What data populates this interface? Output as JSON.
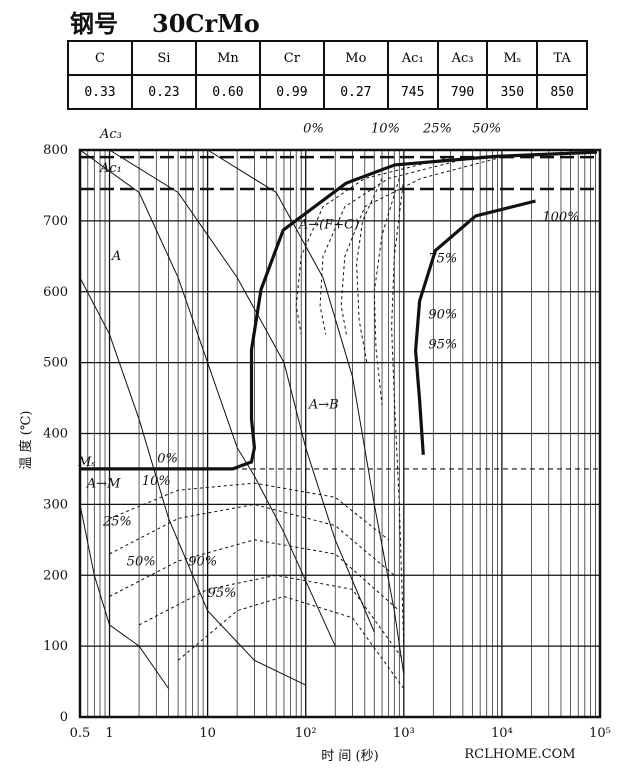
{
  "header": {
    "steel_label": "钢号",
    "grade": "30CrMo"
  },
  "table": {
    "headers": [
      "C",
      "Si",
      "Mn",
      "Cr",
      "Mo",
      "Ac₁",
      "Ac₃",
      "Mₛ",
      "TA"
    ],
    "rows": [
      [
        "0.33",
        "0.23",
        "0.60",
        "0.99",
        "0.27",
        "745",
        "790",
        "350",
        "850"
      ]
    ]
  },
  "chart_data": {
    "type": "line",
    "x_label": "时 间 (秒)",
    "y_label": "温 度 (℃)",
    "x_log": true,
    "grid": true,
    "xlim": [
      0.5,
      100000
    ],
    "ylim": [
      0,
      800
    ],
    "xticks": [
      0.5,
      1,
      10,
      {
        "value": 100,
        "label": "10²"
      },
      {
        "value": 1000,
        "label": "10³"
      },
      {
        "value": 10000,
        "label": "10⁴"
      },
      {
        "value": 100000,
        "label": "10⁵"
      }
    ],
    "yticks": [
      0,
      100,
      200,
      300,
      400,
      500,
      600,
      700,
      800
    ],
    "reference_lines": [
      {
        "label": "Ac₃",
        "value": 790
      },
      {
        "label": "Ac₁",
        "value": 745
      },
      {
        "label": "Mₛ",
        "value": 350
      }
    ],
    "annotations": [
      "A→(F+C)",
      "A→B",
      "A→M",
      "A",
      "0%"
    ],
    "series": [
      {
        "name": "0%",
        "line_style": "thick",
        "x": [
          0.5,
          18,
          28,
          30,
          28,
          28,
          35,
          59,
          257,
          810,
          8700,
          93000
        ],
        "y": [
          350,
          350,
          360,
          380,
          420,
          518,
          603,
          687,
          753,
          779,
          791,
          797
        ]
      },
      {
        "name": "10%",
        "line_style": "dashed",
        "x": [
          3000,
          400,
          150,
          90,
          80,
          90
        ],
        "y": [
          790,
          760,
          720,
          650,
          580,
          540
        ]
      },
      {
        "name": "25%",
        "line_style": "dashed",
        "x": [
          5000,
          700,
          250,
          150,
          140,
          160
        ],
        "y": [
          790,
          760,
          720,
          650,
          580,
          540
        ]
      },
      {
        "name": "50%",
        "line_style": "dashed",
        "x": [
          10000,
          1500,
          400,
          250,
          230,
          260
        ],
        "y": [
          790,
          760,
          720,
          650,
          580,
          540
        ]
      },
      {
        "name": "100%",
        "line_style": "thick",
        "x": [
          1580,
          1450,
          1320,
          1450,
          2100,
          5400,
          22000
        ],
        "y": [
          370,
          447,
          517,
          587,
          658,
          707,
          728
        ]
      },
      {
        "name": "75%",
        "line_style": "dashed",
        "x": [
          600,
          380,
          330,
          350,
          420
        ],
        "y": [
          760,
          700,
          640,
          560,
          500
        ]
      },
      {
        "name": "90%",
        "line_style": "dashed",
        "x": [
          900,
          600,
          500,
          520,
          600
        ],
        "y": [
          760,
          680,
          600,
          520,
          440
        ]
      },
      {
        "name": "95%",
        "line_style": "dashed",
        "x": [
          1000,
          800,
          750,
          800,
          900,
          1000
        ],
        "y": [
          760,
          650,
          550,
          450,
          300,
          100
        ]
      },
      {
        "name": "10%",
        "line_style": "dashed",
        "x": [
          1,
          5,
          30,
          200,
          700
        ],
        "y": [
          280,
          320,
          330,
          310,
          250
        ]
      },
      {
        "name": "25%",
        "line_style": "dashed",
        "x": [
          1,
          5,
          30,
          200,
          800
        ],
        "y": [
          230,
          280,
          300,
          270,
          200
        ]
      },
      {
        "name": "50%",
        "line_style": "dashed",
        "x": [
          1,
          5,
          30,
          200,
          900
        ],
        "y": [
          170,
          220,
          250,
          230,
          150
        ]
      },
      {
        "name": "90%",
        "line_style": "dashed",
        "x": [
          2,
          10,
          50,
          300,
          1000
        ],
        "y": [
          130,
          180,
          200,
          180,
          80
        ]
      },
      {
        "name": "95%",
        "line_style": "dashed",
        "x": [
          5,
          20,
          60,
          300,
          1000
        ],
        "y": [
          80,
          150,
          170,
          140,
          40
        ]
      },
      {
        "line_style": "thin",
        "x": [
          0.5,
          1,
          2,
          4,
          10,
          30,
          100
        ],
        "y": [
          620,
          540,
          420,
          280,
          150,
          80,
          45
        ]
      },
      {
        "line_style": "thin",
        "x": [
          0.5,
          2,
          5,
          10,
          20,
          30,
          60,
          200
        ],
        "y": [
          800,
          740,
          620,
          500,
          380,
          340,
          260,
          100
        ]
      },
      {
        "line_style": "thin",
        "x": [
          1,
          5,
          20,
          60,
          100,
          200,
          500
        ],
        "y": [
          800,
          740,
          620,
          500,
          380,
          250,
          120
        ]
      },
      {
        "line_style": "thin",
        "x": [
          10,
          50,
          150,
          300,
          500,
          800,
          1000
        ],
        "y": [
          800,
          740,
          620,
          480,
          300,
          150,
          60
        ]
      },
      {
        "line_style": "thin",
        "x": [
          0.5,
          0.7,
          1,
          2,
          4
        ],
        "y": [
          300,
          200,
          130,
          100,
          40
        ]
      }
    ]
  },
  "watermark": "RCLHOME.COM"
}
